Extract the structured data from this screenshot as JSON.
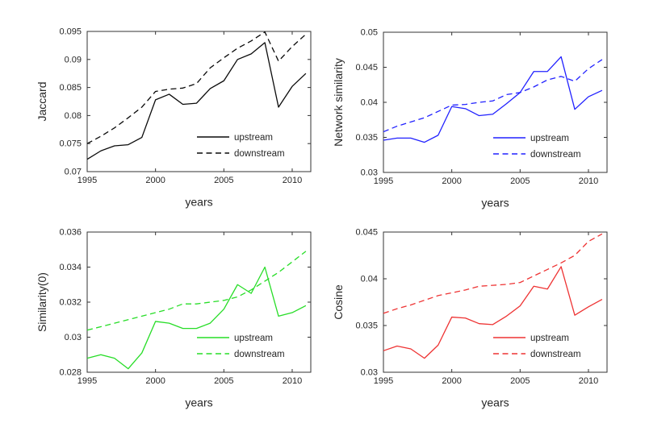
{
  "figure": {
    "background": "#ffffff",
    "axis_color": "#333333"
  },
  "chart_data": [
    {
      "id": "jaccard",
      "type": "line",
      "title": "",
      "xlabel": "years",
      "ylabel": "Jaccard",
      "color": "#0a0a0a",
      "xlim": [
        1995,
        2011.36
      ],
      "ylim": [
        0.07,
        0.095
      ],
      "xticks": [
        1995,
        2000,
        2005,
        2010
      ],
      "xtick_labels": [
        "1995",
        "2000",
        "2005",
        "2010"
      ],
      "yticks": [
        0.07,
        0.075,
        0.08,
        0.085,
        0.09,
        0.095
      ],
      "ytick_labels": [
        "0.07",
        "0.075",
        "0.08",
        "0.085",
        "0.09",
        "0.095"
      ],
      "grid": false,
      "legend": {
        "position": "lower-right",
        "entries": [
          {
            "label": "upstream",
            "style": "solid"
          },
          {
            "label": "downstream",
            "style": "dashed"
          }
        ]
      },
      "x": [
        1995,
        1996,
        1997,
        1998,
        1999,
        2000,
        2001,
        2002,
        2003,
        2004,
        2005,
        2006,
        2007,
        2008,
        2009,
        2010,
        2011
      ],
      "series": [
        {
          "name": "upstream",
          "style": "solid",
          "values": [
            0.0722,
            0.0737,
            0.0746,
            0.0748,
            0.0761,
            0.0828,
            0.0838,
            0.082,
            0.0822,
            0.0848,
            0.0862,
            0.09,
            0.091,
            0.093,
            0.0815,
            0.0852,
            0.0875
          ]
        },
        {
          "name": "downstream",
          "style": "dashed",
          "values": [
            0.075,
            0.0763,
            0.0778,
            0.0796,
            0.0815,
            0.0843,
            0.0847,
            0.0849,
            0.0857,
            0.0885,
            0.0903,
            0.092,
            0.0933,
            0.0949,
            0.0897,
            0.0923,
            0.0945
          ]
        }
      ]
    },
    {
      "id": "network-similarity",
      "type": "line",
      "title": "",
      "xlabel": "years",
      "ylabel": "Network similarity",
      "color": "#2121ff",
      "xlim": [
        1995,
        2011.36
      ],
      "ylim": [
        0.03,
        0.05
      ],
      "xticks": [
        1995,
        2000,
        2005,
        2010
      ],
      "xtick_labels": [
        "1995",
        "2000",
        "2005",
        "2010"
      ],
      "yticks": [
        0.03,
        0.035,
        0.04,
        0.045,
        0.05
      ],
      "ytick_labels": [
        "0.03",
        "0.035",
        "0.04",
        "0.045",
        "0.05"
      ],
      "grid": false,
      "legend": {
        "position": "lower-right",
        "entries": [
          {
            "label": "upstream",
            "style": "solid"
          },
          {
            "label": "downstream",
            "style": "dashed"
          }
        ]
      },
      "x": [
        1995,
        1996,
        1997,
        1998,
        1999,
        2000,
        2001,
        2002,
        2003,
        2004,
        2005,
        2006,
        2007,
        2008,
        2009,
        2010,
        2011
      ],
      "series": [
        {
          "name": "upstream",
          "style": "solid",
          "values": [
            0.0346,
            0.0349,
            0.0349,
            0.0343,
            0.0353,
            0.0394,
            0.0391,
            0.0381,
            0.0383,
            0.0398,
            0.0414,
            0.0444,
            0.0444,
            0.0465,
            0.039,
            0.0408,
            0.0417
          ]
        },
        {
          "name": "downstream",
          "style": "dashed",
          "values": [
            0.0358,
            0.0366,
            0.0372,
            0.0378,
            0.0387,
            0.0396,
            0.0397,
            0.04,
            0.0402,
            0.0411,
            0.0414,
            0.0422,
            0.0432,
            0.0437,
            0.043,
            0.0448,
            0.0461
          ]
        }
      ]
    },
    {
      "id": "similarity0",
      "type": "line",
      "title": "",
      "xlabel": "years",
      "ylabel": "Similarity(0)",
      "color": "#27dd27",
      "xlim": [
        1995,
        2011.36
      ],
      "ylim": [
        0.028,
        0.036
      ],
      "xticks": [
        1995,
        2000,
        2005,
        2010
      ],
      "xtick_labels": [
        "1995",
        "2000",
        "2005",
        "2010"
      ],
      "yticks": [
        0.028,
        0.03,
        0.032,
        0.034,
        0.036
      ],
      "ytick_labels": [
        "0.028",
        "0.03",
        "0.032",
        "0.034",
        "0.036"
      ],
      "grid": false,
      "legend": {
        "position": "lower-right",
        "entries": [
          {
            "label": "upstream",
            "style": "solid"
          },
          {
            "label": "downstream",
            "style": "dashed"
          }
        ]
      },
      "x": [
        1995,
        1996,
        1997,
        1998,
        1999,
        2000,
        2001,
        2002,
        2003,
        2004,
        2005,
        2006,
        2007,
        2008,
        2009,
        2010,
        2011
      ],
      "series": [
        {
          "name": "upstream",
          "style": "solid",
          "values": [
            0.0288,
            0.029,
            0.0288,
            0.0282,
            0.0291,
            0.0309,
            0.0308,
            0.0305,
            0.0305,
            0.0308,
            0.0316,
            0.033,
            0.0325,
            0.034,
            0.0312,
            0.0314,
            0.0318
          ]
        },
        {
          "name": "downstream",
          "style": "dashed",
          "values": [
            0.0304,
            0.0306,
            0.0308,
            0.031,
            0.0312,
            0.0314,
            0.0316,
            0.0319,
            0.0319,
            0.032,
            0.0321,
            0.0323,
            0.0327,
            0.0332,
            0.0337,
            0.0343,
            0.0349
          ]
        }
      ]
    },
    {
      "id": "cosine",
      "type": "line",
      "title": "",
      "xlabel": "years",
      "ylabel": "Cosine",
      "color": "#ee3333",
      "xlim": [
        1995,
        2011.36
      ],
      "ylim": [
        0.03,
        0.045
      ],
      "xticks": [
        1995,
        2000,
        2005,
        2010
      ],
      "xtick_labels": [
        "1995",
        "2000",
        "2005",
        "2010"
      ],
      "yticks": [
        0.03,
        0.035,
        0.04,
        0.045
      ],
      "ytick_labels": [
        "0.03",
        "0.035",
        "0.04",
        "0.045"
      ],
      "grid": false,
      "legend": {
        "position": "lower-right",
        "entries": [
          {
            "label": "upstream",
            "style": "solid"
          },
          {
            "label": "downstream",
            "style": "dashed"
          }
        ]
      },
      "x": [
        1995,
        1996,
        1997,
        1998,
        1999,
        2000,
        2001,
        2002,
        2003,
        2004,
        2005,
        2006,
        2007,
        2008,
        2009,
        2010,
        2011
      ],
      "series": [
        {
          "name": "upstream",
          "style": "solid",
          "values": [
            0.0323,
            0.0328,
            0.0325,
            0.0315,
            0.0329,
            0.0359,
            0.0358,
            0.0352,
            0.0351,
            0.036,
            0.0371,
            0.0392,
            0.0389,
            0.0413,
            0.0361,
            0.037,
            0.0378
          ]
        },
        {
          "name": "downstream",
          "style": "dashed",
          "values": [
            0.0363,
            0.0368,
            0.0372,
            0.0377,
            0.0382,
            0.0385,
            0.0388,
            0.0392,
            0.0393,
            0.0394,
            0.0396,
            0.0403,
            0.041,
            0.0417,
            0.0425,
            0.044,
            0.0448
          ]
        }
      ]
    }
  ]
}
